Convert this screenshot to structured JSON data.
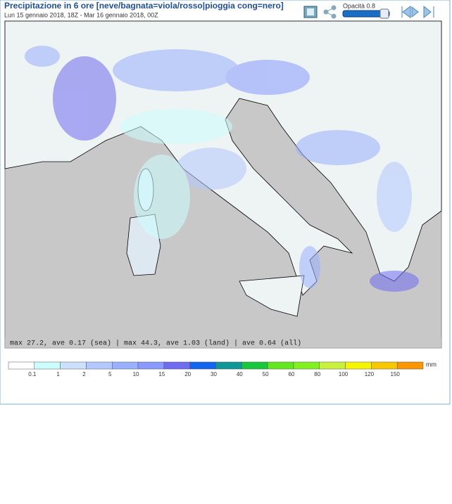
{
  "header": {
    "title": "Precipitazione in 6 ore [neve/bagnata=viola/rosso|pioggia cong=nero]",
    "subtitle": "Lun 15 gennaio 2018, 18Z - Mar 16 gennaio 2018, 00Z"
  },
  "controls": {
    "opacity_label": "Opacità 0.8"
  },
  "map": {
    "stats": "max 27.2, ave 0.17 (sea) | max 44.3, ave 1.03 (land) | ave 0.64 (all)"
  },
  "legend": {
    "unit": "mm",
    "labels": [
      "0.1",
      "1",
      "2",
      "5",
      "10",
      "15",
      "20",
      "30",
      "40",
      "50",
      "60",
      "80",
      "100",
      "120",
      "150"
    ],
    "colors": [
      "#ffffff",
      "#ccffff",
      "#cce0ff",
      "#b3c8ff",
      "#99b0ff",
      "#8899ff",
      "#6f6cf0",
      "#1464f0",
      "#0f9696",
      "#18c83c",
      "#64e61e",
      "#82f01e",
      "#c8f03c",
      "#f5f500",
      "#f5c800",
      "#fa9600"
    ]
  }
}
